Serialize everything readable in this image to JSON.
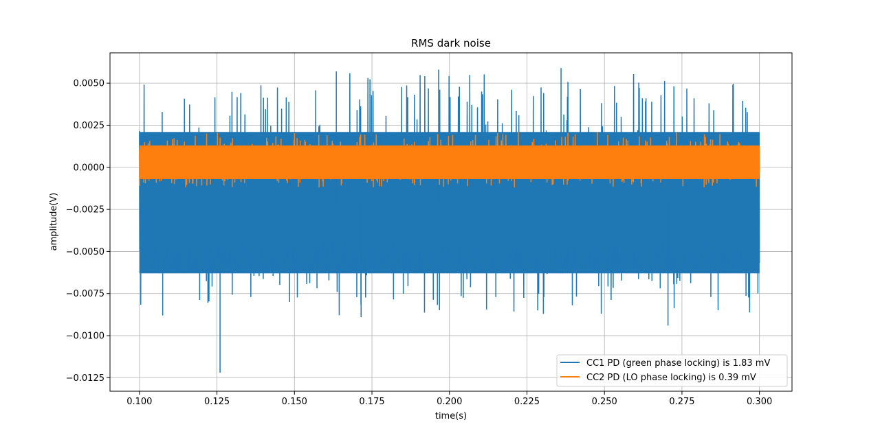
{
  "chart_data": {
    "type": "line",
    "title": "RMS dark noise",
    "xlabel": "time(s)",
    "ylabel": "amplitude(V)",
    "xlim": [
      0.0905,
      0.3105
    ],
    "ylim": [
      -0.0133,
      0.0068
    ],
    "grid": true,
    "legend_position": "lower-right",
    "x_ticks": [
      0.1,
      0.125,
      0.15,
      0.175,
      0.2,
      0.225,
      0.25,
      0.275,
      0.3
    ],
    "x_tick_labels": [
      "0.100",
      "0.125",
      "0.150",
      "0.175",
      "0.200",
      "0.225",
      "0.250",
      "0.275",
      "0.300"
    ],
    "y_ticks": [
      0.005,
      0.0025,
      0.0,
      -0.0025,
      -0.005,
      -0.0075,
      -0.01,
      -0.0125
    ],
    "y_tick_labels": [
      "0.0050",
      "0.0025",
      "0.0000",
      "−0.0025",
      "−0.0050",
      "−0.0075",
      "−0.0100",
      "−0.0125"
    ],
    "series": [
      {
        "name": "CC1 PD (green phase locking) is 1.83 mV",
        "color": "#1f77b4",
        "x_range": [
          0.1,
          0.3
        ],
        "mean": -0.0021,
        "band_core": [
          -0.0063,
          0.0021
        ],
        "envelope": [
          -0.0088,
          0.0057
        ],
        "extreme_points": [
          {
            "x": 0.126,
            "y": -0.0122
          },
          {
            "x": 0.1635,
            "y": 0.0057
          },
          {
            "x": 0.1965,
            "y": 0.0058
          },
          {
            "x": 0.236,
            "y": 0.0059
          },
          {
            "x": 0.2705,
            "y": -0.0094
          },
          {
            "x": 0.1715,
            "y": -0.0089
          },
          {
            "x": 0.1075,
            "y": -0.0088
          }
        ]
      },
      {
        "name": "CC2 PD (LO phase locking) is 0.39 mV",
        "color": "#ff7f0e",
        "x_range": [
          0.1,
          0.3
        ],
        "mean": 0.0003,
        "band_core": [
          -0.0007,
          0.0013
        ],
        "envelope": [
          -0.0012,
          0.0021
        ]
      }
    ]
  }
}
